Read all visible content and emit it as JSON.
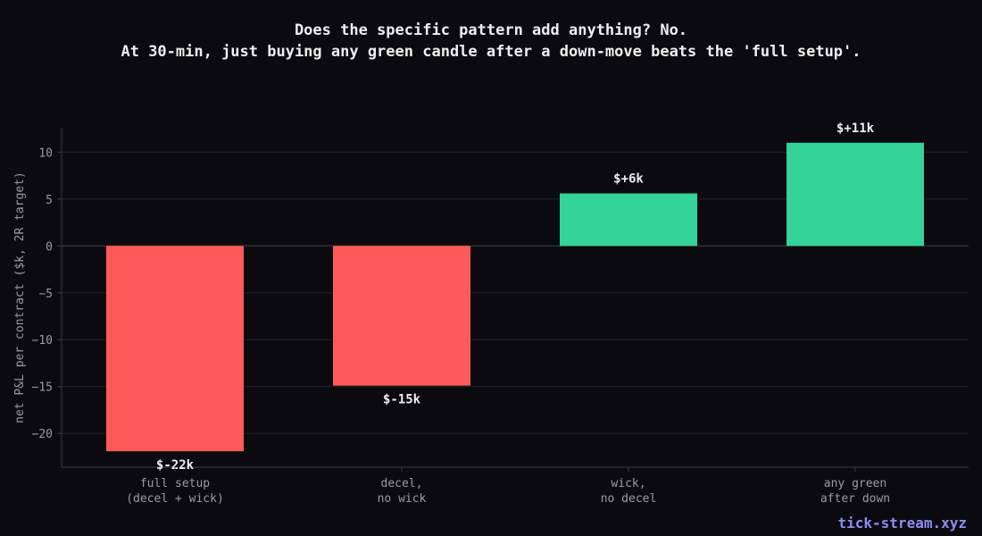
{
  "chart_data": {
    "type": "bar",
    "title_lines": [
      "Does the specific pattern add anything? No.",
      "At 30-min, just buying any green candle after a down-move beats the 'full setup'."
    ],
    "categories": [
      [
        "full setup",
        "(decel + wick)"
      ],
      [
        "decel,",
        "no wick"
      ],
      [
        "wick,",
        "no decel"
      ],
      [
        "any green",
        "after down"
      ]
    ],
    "values": [
      -21.9,
      -14.9,
      5.6,
      11.0
    ],
    "data_labels": [
      "$-22k",
      "$-15k",
      "$+6k",
      "$+11k"
    ],
    "xlabel": "",
    "ylabel": "net P&L per contract ($k, 2R target)",
    "ylim": [
      -23.6,
      12.6
    ],
    "yticks": [
      10,
      5,
      0,
      -5,
      -10,
      -15,
      -20
    ],
    "ytick_labels": [
      "10",
      "5",
      "0",
      "−5",
      "−10",
      "−15",
      "−20"
    ],
    "grid": true,
    "colors": {
      "positive": "#34d399",
      "negative": "#ff5a5a",
      "background": "#0b0b0f",
      "grid": "#22232a",
      "axis": "#3a3b44",
      "tick_text": "#9a9aa4",
      "label_text": "#eeeeee"
    }
  },
  "watermark": "tick-stream.xyz"
}
